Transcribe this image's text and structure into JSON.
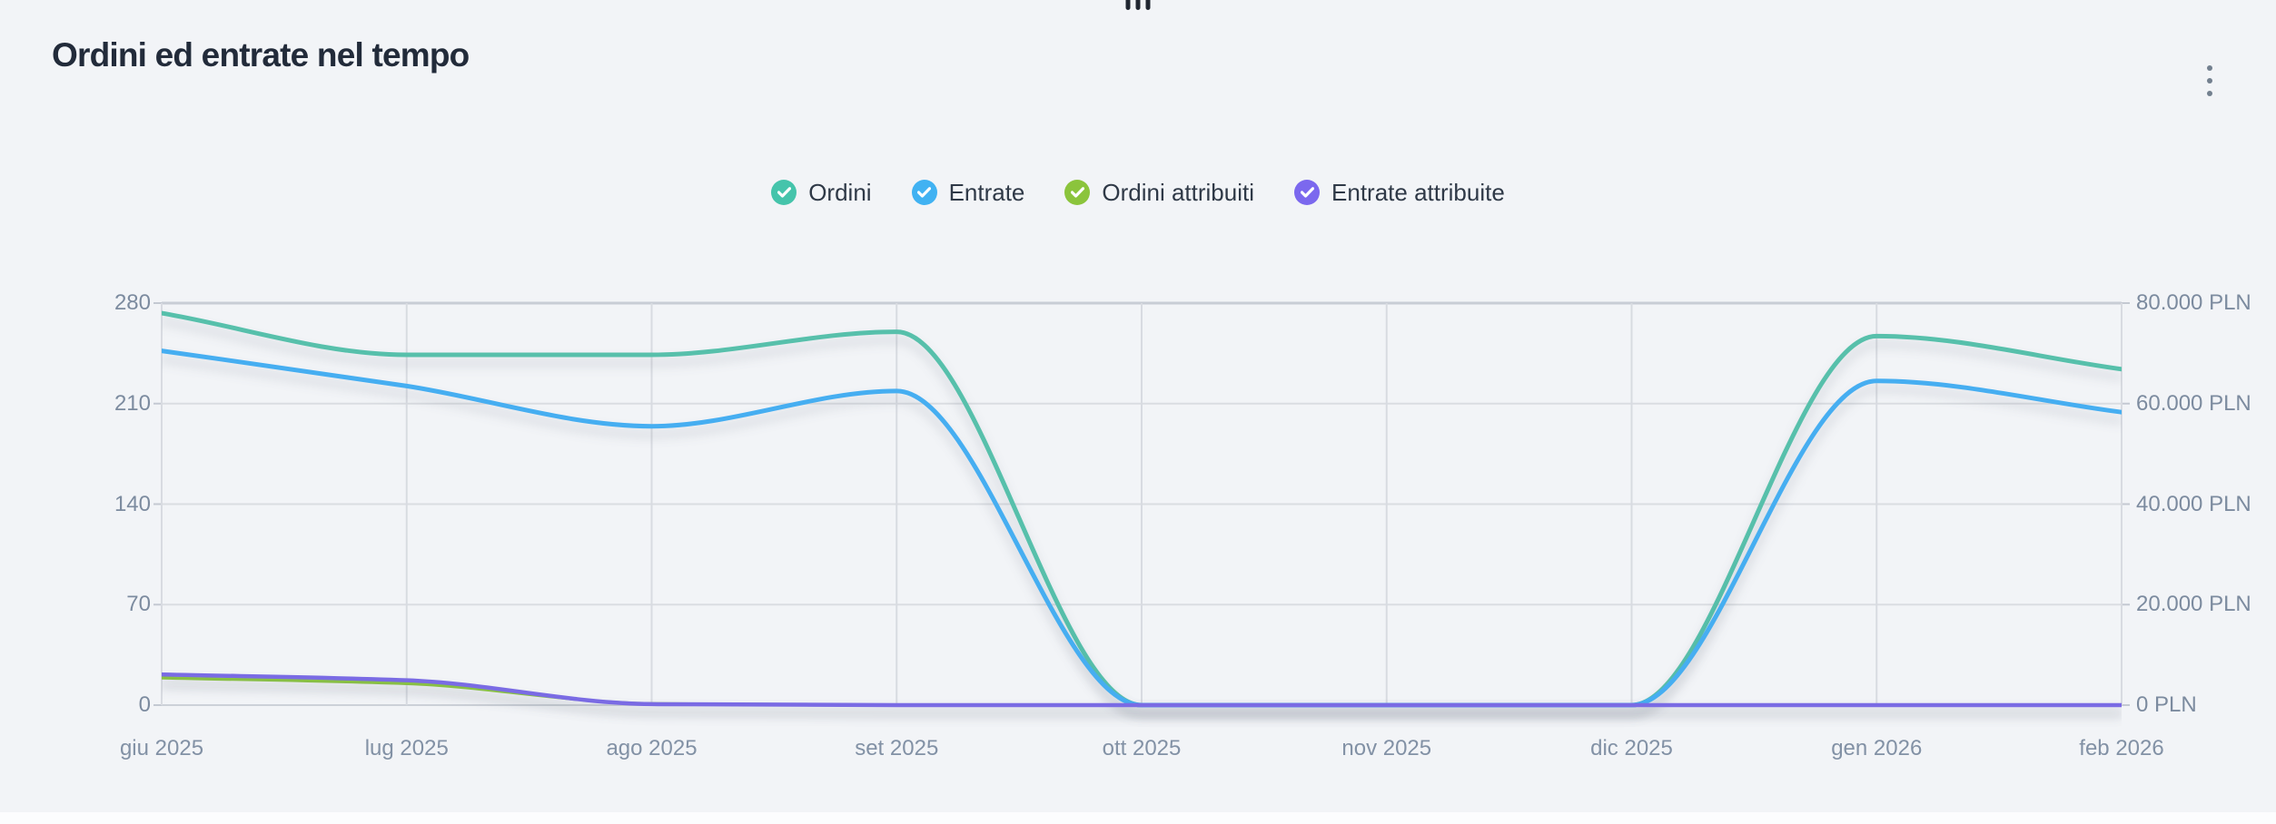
{
  "widget": {
    "title": "Ordini ed entrate nel tempo",
    "drag_handle_icon": "drag-handle",
    "menu_icon": "kebab-vertical-menu"
  },
  "legend": [
    {
      "label": "Ordini",
      "color": "#45c4ab",
      "check_icon": "checkmark",
      "checked": true
    },
    {
      "label": "Entrate",
      "color": "#41b2f2",
      "check_icon": "checkmark",
      "checked": true
    },
    {
      "label": "Ordini attribuiti",
      "color": "#8bc43c",
      "check_icon": "checkmark",
      "checked": true
    },
    {
      "label": "Entrate attribuite",
      "color": "#7b68ee",
      "check_icon": "checkmark",
      "checked": true
    }
  ],
  "chart_data": {
    "type": "line",
    "title": "Ordini ed entrate nel tempo",
    "categories": [
      "giu 2025",
      "lug 2025",
      "ago 2025",
      "set 2025",
      "ott 2025",
      "nov 2025",
      "dic 2025",
      "gen 2026",
      "feb 2026"
    ],
    "series": [
      {
        "name": "Ordini",
        "axis": "left",
        "color": "#57c0ab",
        "values": [
          273,
          244,
          244,
          260,
          0,
          0,
          0,
          257,
          234
        ]
      },
      {
        "name": "Entrate",
        "axis": "right",
        "color": "#46aef1",
        "values": [
          70500,
          63500,
          55500,
          62500,
          0,
          0,
          0,
          64500,
          58300
        ]
      },
      {
        "name": "Ordini attribuiti",
        "axis": "left",
        "color": "#8cc544",
        "values": [
          19,
          15,
          1,
          0,
          0,
          0,
          0,
          0,
          0
        ]
      },
      {
        "name": "Entrate attribuite",
        "axis": "right",
        "color": "#7a6be4",
        "values": [
          6100,
          4950,
          200,
          0,
          0,
          0,
          0,
          0,
          0
        ]
      }
    ],
    "left_axis": {
      "min": 0,
      "max": 280,
      "ticks": [
        "0",
        "70",
        "140",
        "210",
        "280"
      ]
    },
    "right_axis": {
      "min": 0,
      "max": 80000,
      "unit": "PLN",
      "ticks": [
        "0 PLN",
        "20.000 PLN",
        "40.000 PLN",
        "60.000 PLN",
        "80.000 PLN"
      ]
    },
    "grid": true,
    "smooth": true,
    "legend_position": "top"
  }
}
